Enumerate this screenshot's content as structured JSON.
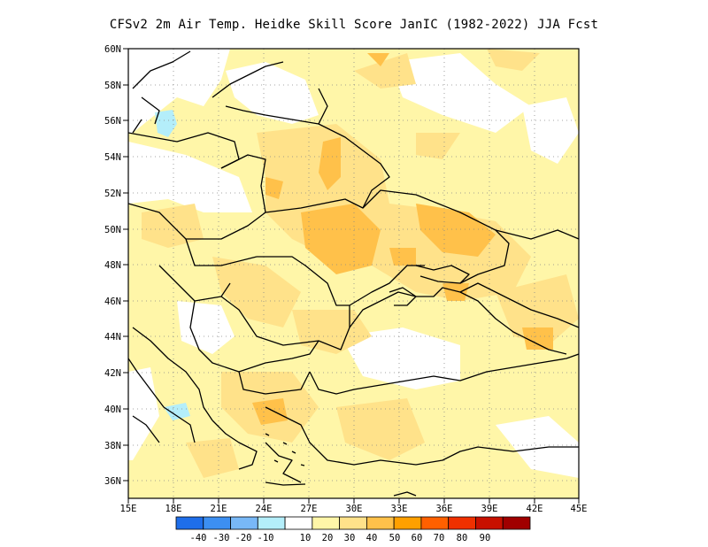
{
  "title": "CFSv2  2m Air Temp. Heidke Skill Score JanIC (1982-2022) JJA Fcst",
  "map": {
    "lon_range": [
      15,
      45
    ],
    "lat_range": [
      35,
      60
    ],
    "lon_ticks": [
      "15E",
      "18E",
      "21E",
      "24E",
      "27E",
      "30E",
      "33E",
      "36E",
      "39E",
      "42E",
      "45E"
    ],
    "lat_ticks": [
      "36N",
      "38N",
      "40N",
      "42N",
      "44N",
      "46N",
      "48N",
      "50N",
      "52N",
      "54N",
      "56N",
      "58N",
      "60N"
    ],
    "grid": "dotted",
    "region": "Eastern Europe / Black Sea"
  },
  "colorbar": {
    "labels": [
      "-40",
      "-30",
      "-20",
      "-10",
      "10",
      "20",
      "30",
      "40",
      "50",
      "60",
      "70",
      "80",
      "90"
    ],
    "colors": [
      "#1e6eea",
      "#3c8ff2",
      "#78b8f7",
      "#b4eefa",
      "#ffffff",
      "#fff6a8",
      "#ffe28a",
      "#ffc14a",
      "#ffa000",
      "#ff6000",
      "#f03000",
      "#c81000",
      "#a00000"
    ]
  }
}
